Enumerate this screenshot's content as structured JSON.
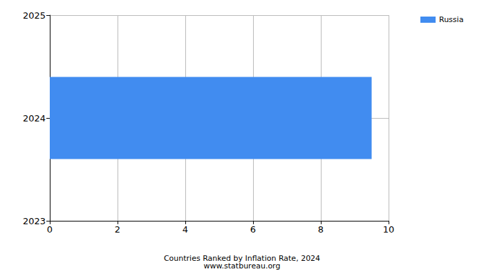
{
  "chart_data": {
    "type": "bar",
    "orientation": "horizontal",
    "title": "Countries Ranked by Inflation Rate, 2024",
    "subtitle": "www.statbureau.org",
    "categories": [
      "2023",
      "2024",
      "2025"
    ],
    "series": [
      {
        "name": "Russia",
        "color": "#418cf0",
        "values": [
          null,
          9.5,
          null
        ]
      }
    ],
    "xlim": [
      0,
      10
    ],
    "xticks": [
      0,
      2,
      4,
      6,
      8,
      10
    ],
    "grid": true,
    "legend": "top right"
  }
}
